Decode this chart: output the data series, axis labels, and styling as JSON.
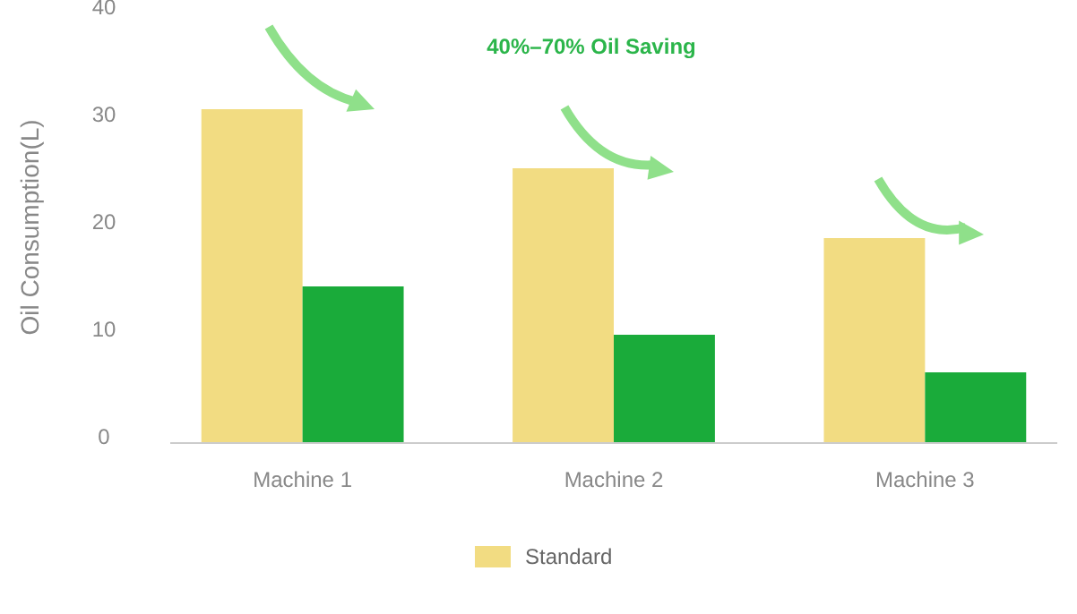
{
  "chart_data": {
    "type": "bar",
    "ylabel": "Oil Consumption(L)",
    "categories": [
      "Machine 1",
      "Machine 2",
      "Machine 3"
    ],
    "series": [
      {
        "name": "Standard",
        "color": "#f2dc82",
        "values": [
          31,
          25.5,
          19
        ]
      },
      {
        "color": "#1aab3a",
        "values": [
          14.5,
          10,
          6.5
        ]
      }
    ],
    "ylim": [
      0,
      40
    ],
    "yticks": [
      0,
      10,
      20,
      30,
      40
    ],
    "grid": false,
    "legend": "bottom",
    "annotations": [
      "40%–70% Oil Saving"
    ]
  }
}
